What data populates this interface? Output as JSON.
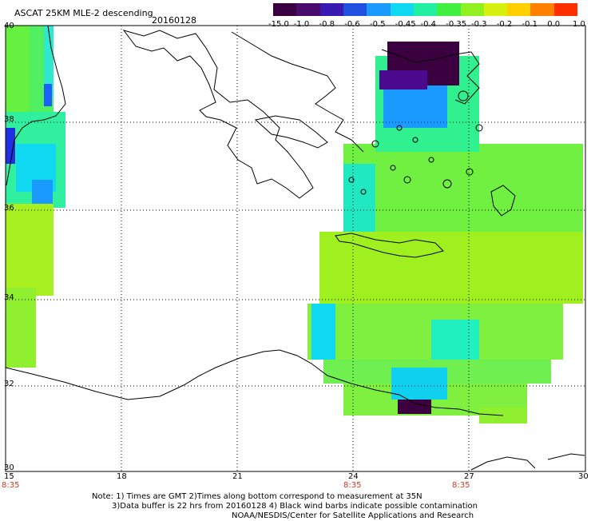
{
  "header": {
    "title": "ASCAT 25KM MLE-2 descending",
    "date": "20160128"
  },
  "colorbar": {
    "colors": [
      "#3a0040",
      "#4b0a6e",
      "#3a1ab0",
      "#2050e0",
      "#1a9aff",
      "#10d8f0",
      "#20f0a0",
      "#40f040",
      "#90f020",
      "#d8f010",
      "#ffd000",
      "#ff8000",
      "#ff3000"
    ],
    "labels": [
      "-15.0",
      "-1.0",
      "-0.8",
      "-0.6",
      "-0.5",
      "-0.45",
      "-0.4",
      "-0.35",
      "-0.3",
      "-0.2",
      "-0.1",
      "0.0",
      "1.0"
    ]
  },
  "axes": {
    "lon_labels": [
      "15",
      "18",
      "21",
      "24",
      "27",
      "30"
    ],
    "lat_labels": [
      "40",
      "38",
      "36",
      "34",
      "32",
      "30"
    ],
    "time_labels": [
      "8:35",
      "8:35",
      "8:35"
    ]
  },
  "notes": {
    "line1": "Note: 1) Times are GMT 2)Times along bottom correspond to measurement at 35N",
    "line2": "3)Data buffer is 22 hrs from 20160128 4) Black wind barbs indicate possible contamination",
    "line3": "NOAA/NESDIS/Center for Satellite Applications and Research"
  }
}
